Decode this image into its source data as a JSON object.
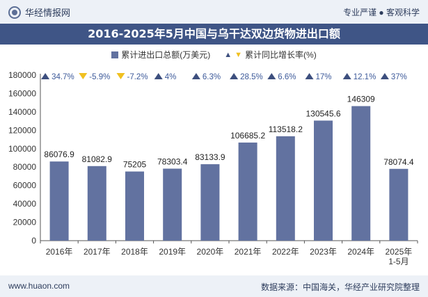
{
  "header": {
    "brand": "华经情报网",
    "tagline": "专业严谨 ● 客观科学"
  },
  "title": "2016-2025年5月中国与乌干达双边货物进出口额",
  "legend": {
    "series1": "累计进出口总额(万美元)",
    "series2": "累计同比增长率(%)"
  },
  "footer": {
    "site": "www.huaon.com",
    "source": "数据来源：中国海关，华经产业研究院整理"
  },
  "colors": {
    "bar": "#6272a0",
    "title_bg": "#3f5586",
    "growth_up": "#3d4f7e",
    "growth_down": "#f0c020"
  },
  "chart_data": {
    "type": "bar",
    "categories": [
      "2016年",
      "2017年",
      "2018年",
      "2019年",
      "2020年",
      "2021年",
      "2022年",
      "2023年",
      "2024年",
      "2025年\n1-5月"
    ],
    "series": [
      {
        "name": "累计进出口总额(万美元)",
        "values": [
          86076.9,
          81082.9,
          75205,
          78303.4,
          83133.9,
          106685.2,
          113518.2,
          130545.6,
          146309,
          78074.4
        ],
        "labels": [
          "86076.9",
          "81082.9",
          "75205",
          "78303.4",
          "83133.9",
          "106685.2",
          "113518.2",
          "130545.6",
          "146309",
          "78074.4"
        ]
      },
      {
        "name": "累计同比增长率(%)",
        "values": [
          34.7,
          -5.9,
          -7.2,
          4,
          6.3,
          28.5,
          6.6,
          17,
          12.1,
          37
        ],
        "labels": [
          "34.7%",
          "-5.9%",
          "-7.2%",
          "4%",
          "6.3%",
          "28.5%",
          "6.6%",
          "17%",
          "12.1%",
          "37%"
        ]
      }
    ],
    "yticks": [
      "0",
      "20000",
      "40000",
      "60000",
      "80000",
      "100000",
      "120000",
      "140000",
      "160000",
      "180000"
    ],
    "ylim": [
      0,
      180000
    ],
    "legend_position": "top"
  }
}
